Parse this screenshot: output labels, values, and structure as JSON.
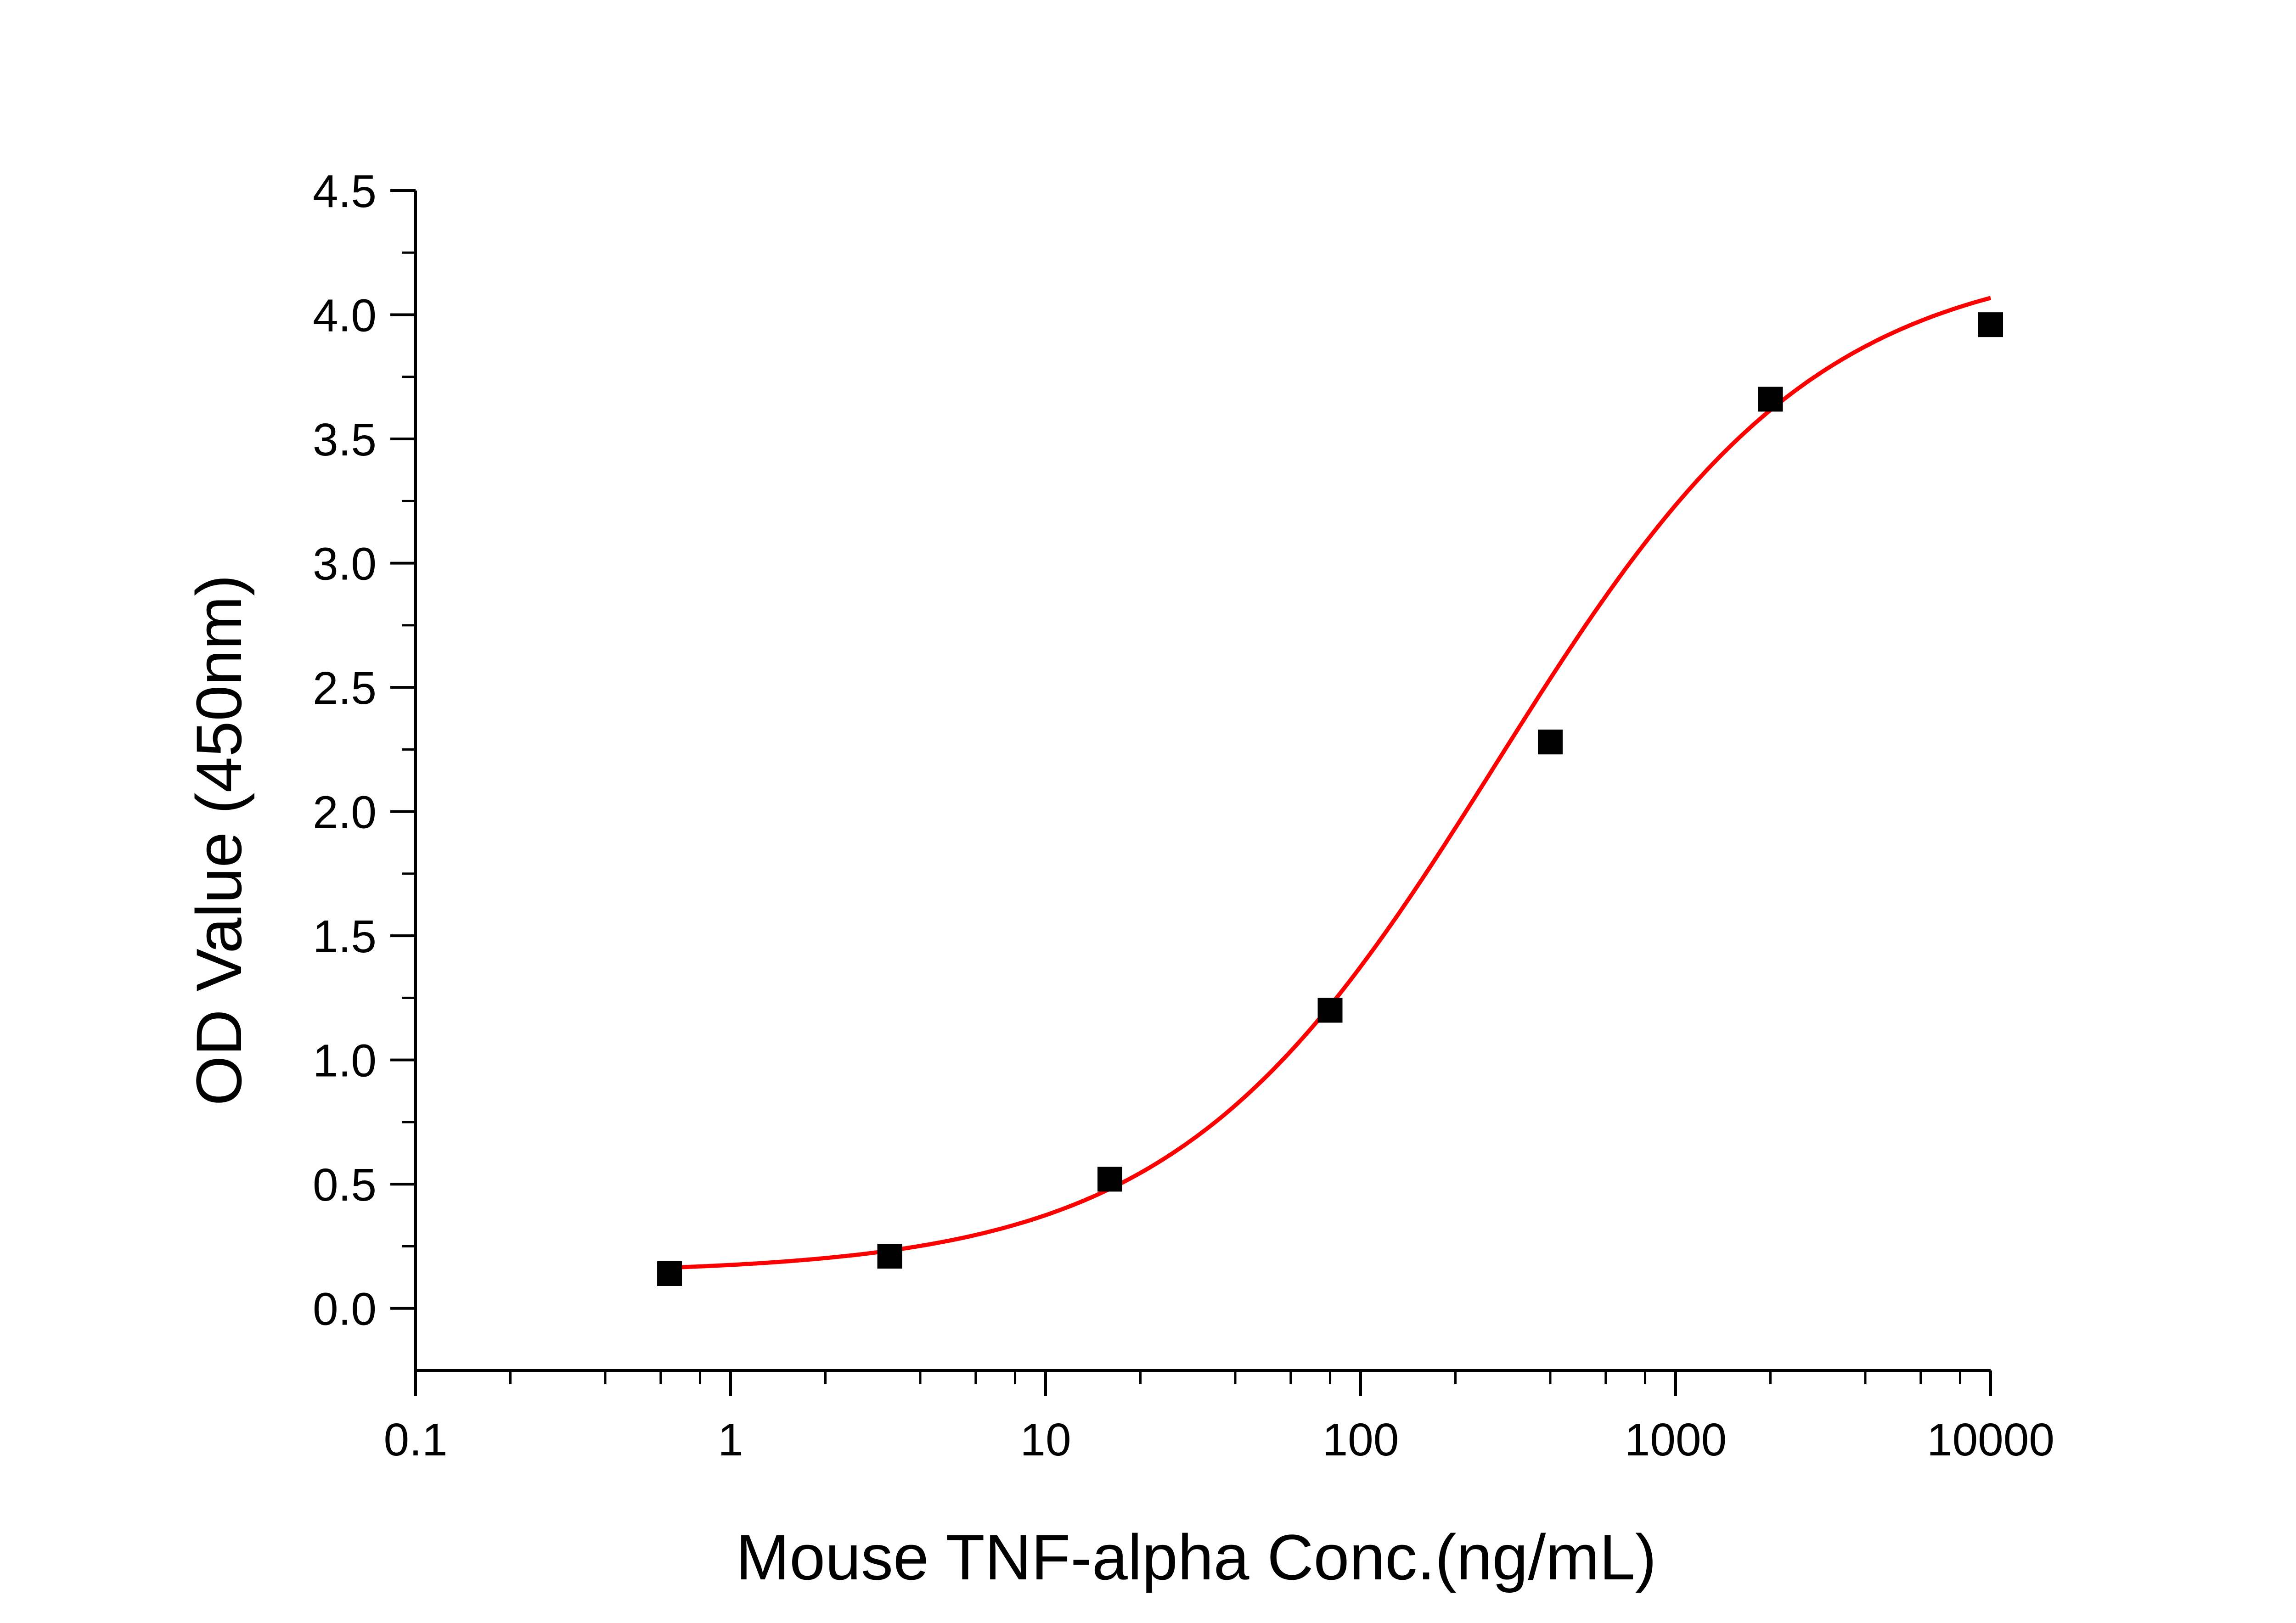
{
  "chart_data": {
    "type": "scatter",
    "xlabel": "Mouse TNF-alpha Conc.(ng/mL)",
    "ylabel": "OD Value (450nm)",
    "x_scale": "log",
    "xlim": [
      0.1,
      10000
    ],
    "ylim": [
      -0.25,
      4.5
    ],
    "x_ticks": [
      0.1,
      1,
      10,
      100,
      1000,
      10000
    ],
    "x_tick_labels": [
      "0.1",
      "1",
      "10",
      "100",
      "1000",
      "10000"
    ],
    "y_ticks": [
      0.0,
      0.5,
      1.0,
      1.5,
      2.0,
      2.5,
      3.0,
      3.5,
      4.0,
      4.5
    ],
    "y_tick_labels": [
      "0.0",
      "0.5",
      "1.0",
      "1.5",
      "2.0",
      "2.5",
      "3.0",
      "3.5",
      "4.0",
      "4.5"
    ],
    "grid": false,
    "series": [
      {
        "kind": "points",
        "marker": "square",
        "color": "#000000",
        "x": [
          0.64,
          3.2,
          16,
          80,
          400,
          2000,
          10000
        ],
        "y": [
          0.14,
          0.21,
          0.52,
          1.2,
          2.28,
          3.66,
          3.96
        ]
      },
      {
        "kind": "fit-line",
        "color": "#ff0000",
        "model": "4PL",
        "params": {
          "bottom": 0.14,
          "top": 4.25,
          "ec50": 270,
          "hill": 0.85
        },
        "x_range": [
          0.64,
          10000
        ]
      }
    ]
  }
}
